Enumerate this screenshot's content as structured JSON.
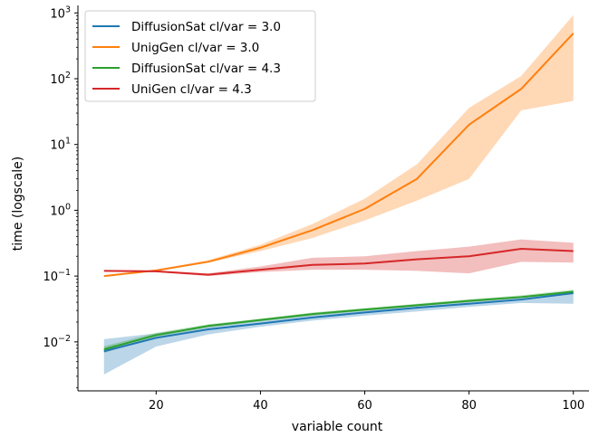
{
  "chart_data": {
    "type": "line",
    "xlabel": "variable count",
    "ylabel": "time (logscale)",
    "yscale": "log",
    "xlim": [
      5,
      103
    ],
    "ylim": [
      0.0018,
      1300
    ],
    "x_ticks": [
      20,
      40,
      60,
      80,
      100
    ],
    "y_ticks": [
      {
        "value": 0.01,
        "base": "10",
        "exp": "−2"
      },
      {
        "value": 0.1,
        "base": "10",
        "exp": "−1"
      },
      {
        "value": 1,
        "base": "10",
        "exp": "0"
      },
      {
        "value": 10,
        "base": "10",
        "exp": "1"
      },
      {
        "value": 100,
        "base": "10",
        "exp": "2"
      },
      {
        "value": 1000,
        "base": "10",
        "exp": "3"
      }
    ],
    "legend_position": "top-left",
    "grid": false,
    "x": [
      10,
      20,
      30,
      40,
      50,
      60,
      70,
      80,
      90,
      100
    ],
    "series": [
      {
        "name": "DiffusionSat cl/var = 3.0",
        "color": "#1f77b4",
        "values": [
          0.0072,
          0.0115,
          0.0155,
          0.019,
          0.0235,
          0.028,
          0.033,
          0.038,
          0.044,
          0.055
        ],
        "lower": [
          0.0032,
          0.0085,
          0.013,
          0.017,
          0.021,
          0.025,
          0.029,
          0.034,
          0.039,
          0.038
        ],
        "upper": [
          0.011,
          0.0135,
          0.0175,
          0.021,
          0.0255,
          0.0305,
          0.036,
          0.041,
          0.048,
          0.06
        ]
      },
      {
        "name": "UnigGen cl/var = 3.0",
        "color": "#ff7f0e",
        "values": [
          0.1,
          0.122,
          0.165,
          0.27,
          0.5,
          1.05,
          3.0,
          20,
          70,
          490
        ],
        "lower": [
          0.1,
          0.12,
          0.16,
          0.24,
          0.38,
          0.7,
          1.4,
          3.0,
          33,
          46
        ],
        "upper": [
          0.1,
          0.125,
          0.175,
          0.3,
          0.62,
          1.5,
          5.0,
          36,
          110,
          930
        ]
      },
      {
        "name": "DiffusionSat cl/var = 4.3",
        "color": "#2ca02c",
        "values": [
          0.0077,
          0.0127,
          0.0175,
          0.0215,
          0.0265,
          0.031,
          0.036,
          0.042,
          0.048,
          0.058
        ],
        "lower": [
          0.0068,
          0.0118,
          0.0165,
          0.0205,
          0.025,
          0.0295,
          0.0345,
          0.04,
          0.046,
          0.055
        ],
        "upper": [
          0.0086,
          0.0137,
          0.0185,
          0.0225,
          0.028,
          0.0325,
          0.038,
          0.0445,
          0.051,
          0.062
        ]
      },
      {
        "name": "UniGen cl/var = 4.3",
        "color": "#d62728",
        "values": [
          0.12,
          0.118,
          0.105,
          0.125,
          0.148,
          0.155,
          0.18,
          0.2,
          0.26,
          0.24
        ],
        "lower": [
          0.12,
          0.115,
          0.1,
          0.115,
          0.125,
          0.125,
          0.12,
          0.11,
          0.165,
          0.16
        ],
        "upper": [
          0.12,
          0.121,
          0.11,
          0.14,
          0.19,
          0.2,
          0.24,
          0.28,
          0.36,
          0.32
        ]
      }
    ]
  }
}
